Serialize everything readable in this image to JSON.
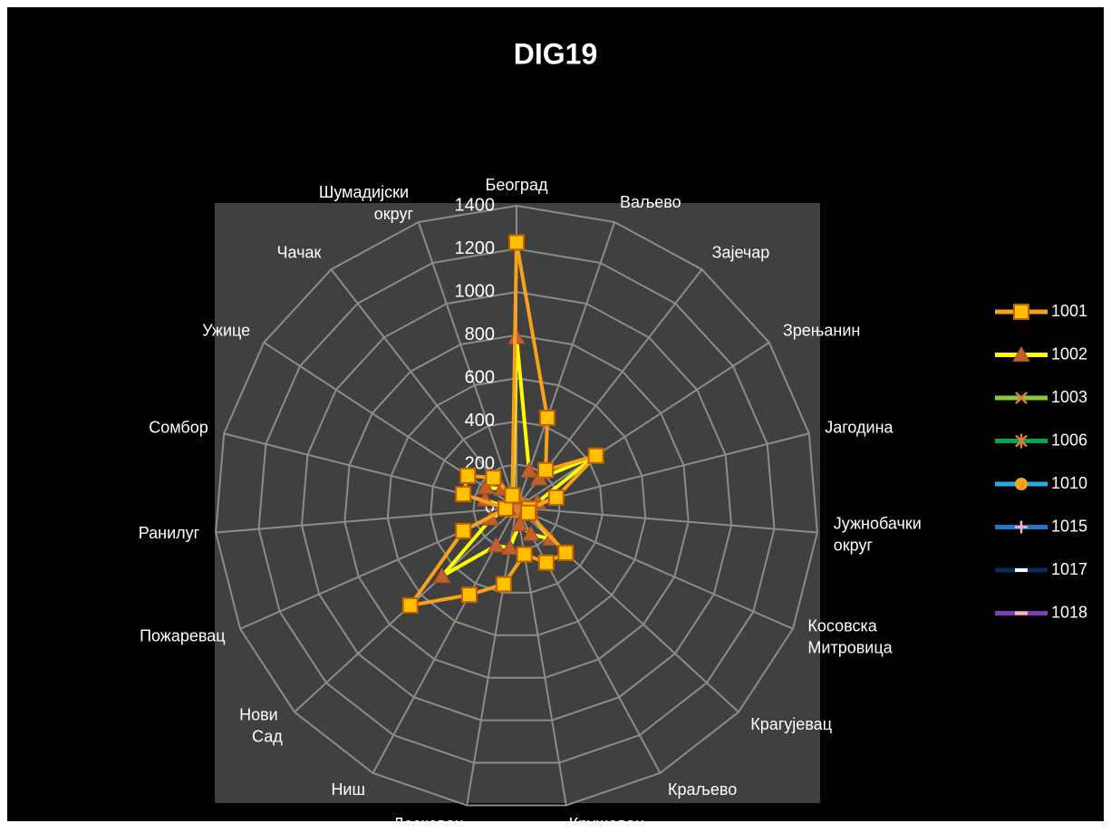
{
  "chart_data": {
    "type": "radar",
    "title": "DIG19",
    "categories": [
      "Београд",
      "Ваљево",
      "Зајечар",
      "Зрењанин",
      "Јагодина",
      "Јужнобачки округ",
      "Косовска Митровица",
      "Крагујевац",
      "Краљево",
      "Крушевац",
      "Лесковац",
      "Ниш",
      "Нови Сад",
      "Пожаревац",
      "Ранилуг",
      "Сомбор",
      "Ужице",
      "Чачак",
      "Шумадијски округ"
    ],
    "series": [
      {
        "name": "1001",
        "color": "#f7a21b",
        "marker": "square",
        "marker_color": "#ffc000",
        "values": [
          1230,
          440,
          220,
          440,
          190,
          60,
          60,
          310,
          290,
          220,
          360,
          460,
          670,
          270,
          50,
          255,
          270,
          175,
          60
        ]
      },
      {
        "name": "1002",
        "color": "#ffff00",
        "marker": "triangle",
        "marker_color": "#c0602a",
        "values": [
          790,
          180,
          170,
          440,
          100,
          50,
          70,
          215,
          140,
          80,
          190,
          200,
          470,
          130,
          40,
          150,
          170,
          110,
          50
        ]
      },
      {
        "name": "1003",
        "color": "#8dc63f",
        "marker": "x",
        "marker_color": "#e07b39",
        "values": [
          40,
          20,
          15,
          30,
          15,
          10,
          10,
          20,
          15,
          10,
          20,
          20,
          30,
          15,
          5,
          15,
          15,
          10,
          10
        ]
      },
      {
        "name": "1006",
        "color": "#00a650",
        "marker": "star",
        "marker_color": "#e07b39",
        "values": [
          30,
          15,
          10,
          20,
          10,
          5,
          5,
          15,
          10,
          10,
          15,
          15,
          20,
          10,
          5,
          10,
          10,
          10,
          5
        ]
      },
      {
        "name": "1010",
        "color": "#29abe2",
        "marker": "circle",
        "marker_color": "#f7a21b",
        "values": [
          20,
          10,
          10,
          15,
          10,
          5,
          5,
          10,
          10,
          5,
          10,
          10,
          15,
          10,
          5,
          10,
          10,
          5,
          5
        ]
      },
      {
        "name": "1015",
        "color": "#1f78c8",
        "marker": "plus",
        "marker_color": "#ffb0c0",
        "values": [
          15,
          10,
          5,
          10,
          5,
          5,
          5,
          10,
          5,
          5,
          10,
          10,
          10,
          5,
          5,
          5,
          5,
          5,
          5
        ]
      },
      {
        "name": "1017",
        "color": "#0a2a5a",
        "marker": "dash",
        "marker_color": "#ffffff",
        "values": [
          10,
          5,
          5,
          10,
          5,
          5,
          5,
          5,
          5,
          5,
          5,
          5,
          10,
          5,
          5,
          5,
          5,
          5,
          5
        ]
      },
      {
        "name": "1018",
        "color": "#7a3fb0",
        "marker": "dash",
        "marker_color": "#ffb0c0",
        "values": [
          10,
          5,
          5,
          5,
          5,
          5,
          5,
          5,
          5,
          5,
          5,
          5,
          5,
          5,
          5,
          5,
          5,
          5,
          5
        ]
      }
    ],
    "ylim": [
      0,
      1400
    ],
    "yticks": [
      0,
      200,
      400,
      600,
      800,
      1000,
      1200,
      1400
    ],
    "grid": true,
    "legend": "right"
  }
}
